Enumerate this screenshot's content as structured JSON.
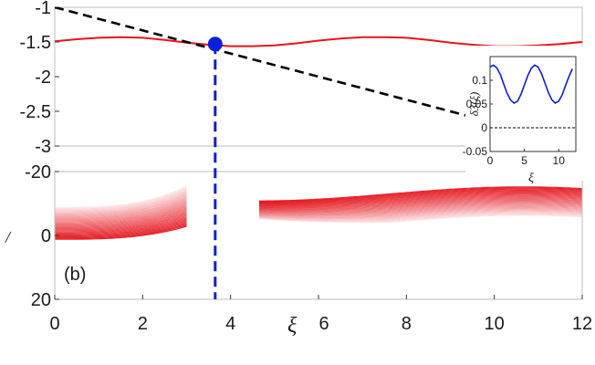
{
  "colors": {
    "red": "#e8141c",
    "blue": "#0a1fd6",
    "black": "#000000",
    "axis": "#333333"
  },
  "chart_data": [
    {
      "id": "top",
      "type": "line",
      "xlim": [
        0,
        12
      ],
      "ylim": [
        -3,
        -1
      ],
      "yticks": [
        "-1",
        "-1.5",
        "-2",
        "-2.5",
        "-3"
      ],
      "series": [
        {
          "style": "solid",
          "color": "#e8141c",
          "x": [
            0,
            0.5,
            1,
            1.5,
            2,
            2.5,
            3,
            3.5,
            4,
            4.5,
            5,
            5.5,
            6,
            6.5,
            7,
            7.5,
            8,
            8.5,
            9,
            9.5,
            10,
            10.5,
            11,
            11.5,
            12
          ],
          "y": [
            -1.49,
            -1.46,
            -1.44,
            -1.43,
            -1.44,
            -1.47,
            -1.51,
            -1.54,
            -1.56,
            -1.56,
            -1.55,
            -1.52,
            -1.48,
            -1.45,
            -1.43,
            -1.43,
            -1.44,
            -1.47,
            -1.51,
            -1.54,
            -1.56,
            -1.56,
            -1.55,
            -1.53,
            -1.5
          ]
        },
        {
          "style": "dashed",
          "color": "#000000",
          "x": [
            0,
            12
          ],
          "y": [
            -1,
            -3.0
          ]
        }
      ],
      "markers": [
        {
          "x": 3.65,
          "y": -1.53,
          "color": "#0a1fd6"
        }
      ]
    },
    {
      "id": "inset",
      "type": "line",
      "xlim": [
        0,
        12.5
      ],
      "ylim": [
        -0.05,
        0.15
      ],
      "xticks": [
        "0",
        "5",
        "10"
      ],
      "yticks": [
        "0.1",
        "0.05",
        "0",
        "-0.05"
      ],
      "ylabel": "δ3(ξ)",
      "xlabel": "ξ",
      "series": [
        {
          "style": "solid",
          "color": "#0a1fd6",
          "x": [
            0,
            0.5,
            1,
            1.5,
            2,
            2.5,
            3,
            3.5,
            4,
            4.5,
            5,
            5.5,
            6,
            6.5,
            7,
            7.5,
            8,
            8.5,
            9,
            9.5,
            10,
            10.5,
            11,
            11.5,
            12
          ],
          "y": [
            0.128,
            0.132,
            0.126,
            0.112,
            0.092,
            0.072,
            0.058,
            0.052,
            0.056,
            0.07,
            0.09,
            0.11,
            0.125,
            0.132,
            0.128,
            0.114,
            0.094,
            0.074,
            0.059,
            0.052,
            0.056,
            0.069,
            0.089,
            0.108,
            0.124
          ]
        },
        {
          "style": "dashed",
          "color": "#000000",
          "x": [
            0,
            12.5
          ],
          "y": [
            0,
            0
          ]
        }
      ]
    },
    {
      "id": "bottom",
      "type": "heatmap",
      "panel_label": "(b)",
      "xlim": [
        0,
        12
      ],
      "ylim": [
        20,
        -20
      ],
      "xticks": [
        "0",
        "2",
        "4",
        "6",
        "8",
        "10",
        "12"
      ],
      "xlabel": "ξ",
      "yticks": [
        "-20",
        "0",
        "20"
      ],
      "ylabel": "/",
      "vline": {
        "x": 3.65,
        "color": "#0a1fd6"
      }
    }
  ]
}
